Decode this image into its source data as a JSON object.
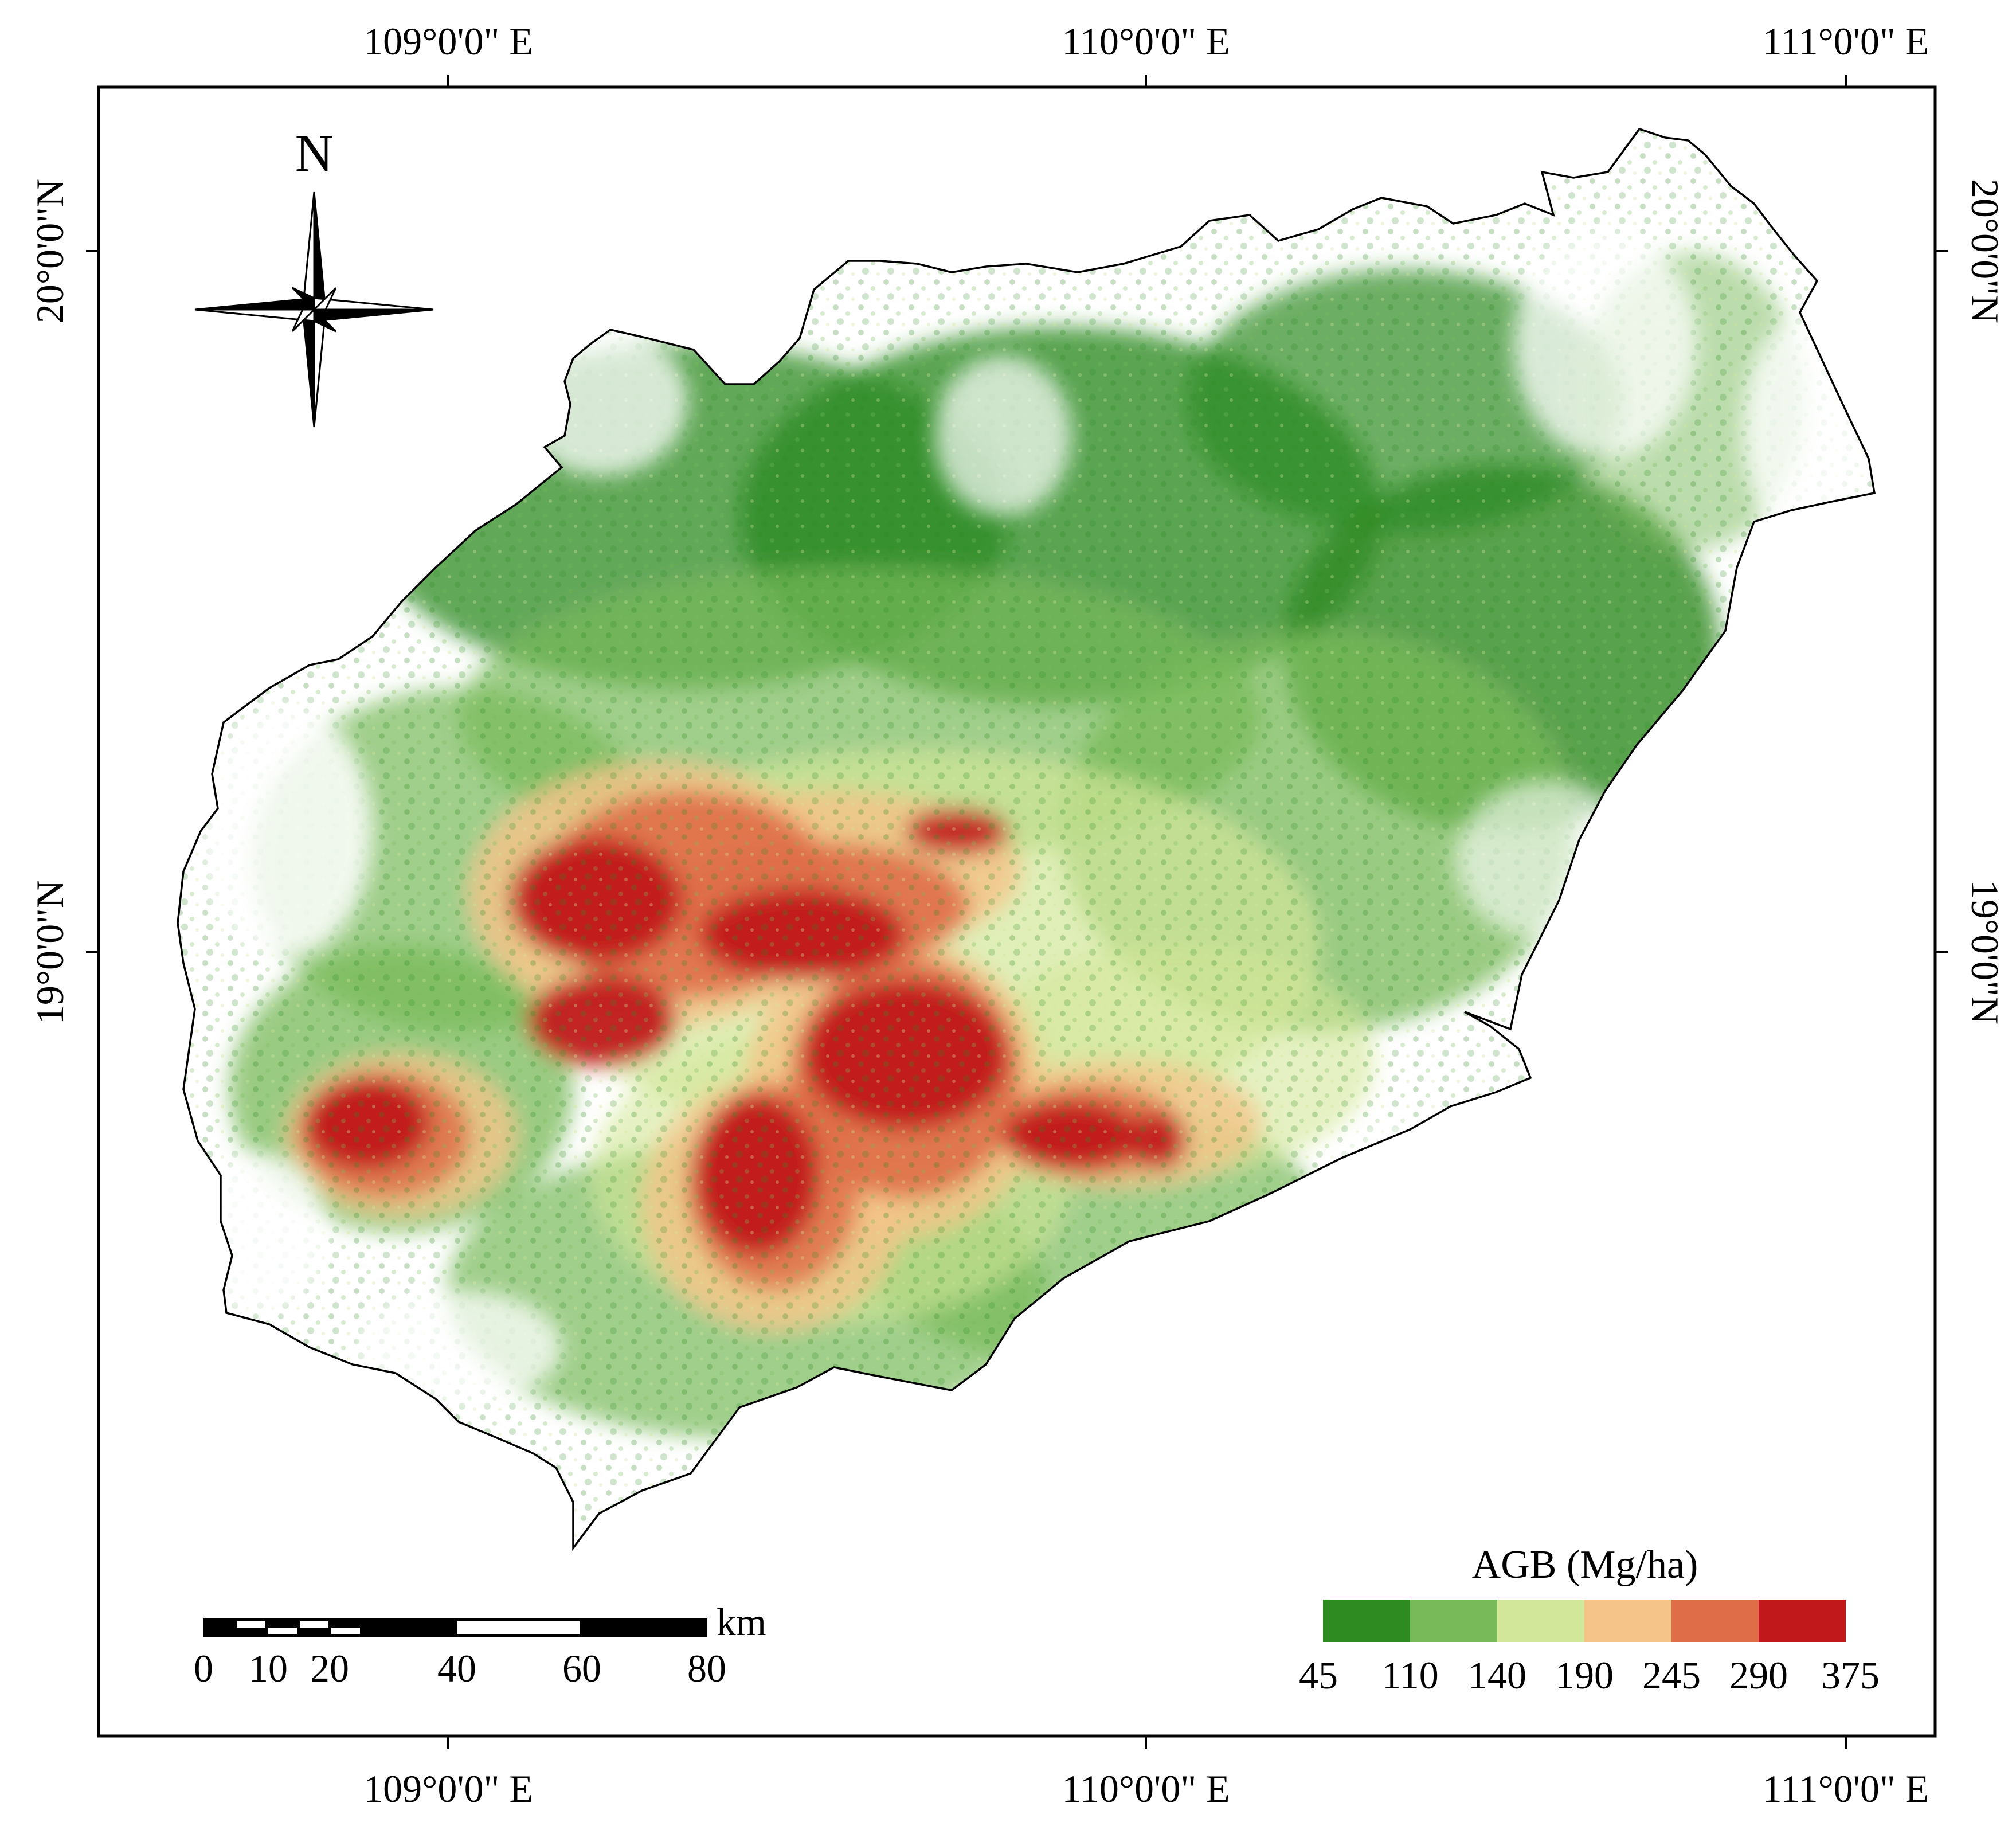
{
  "graticule": {
    "top_labels": [
      "109°0'0\" E",
      "110°0'0\" E",
      "111°0'0\" E"
    ],
    "bottom_labels": [
      "109°0'0\" E",
      "110°0'0\" E",
      "111°0'0\" E"
    ],
    "left_labels": [
      "20°0'0\"N",
      "19°0'0\"N"
    ],
    "right_labels": [
      "20°0'0\"N",
      "19°0'0\"N"
    ]
  },
  "north_arrow": {
    "label": "N"
  },
  "scale_bar": {
    "unit": "km",
    "ticks": [
      "0",
      "10",
      "20",
      "40",
      "60",
      "80"
    ]
  },
  "legend": {
    "title": "AGB (Mg/ha)",
    "class_breaks": [
      "45",
      "110",
      "140",
      "190",
      "245",
      "290",
      "375"
    ],
    "colors": [
      "#2e8b22",
      "#78b95a",
      "#d3e79a",
      "#f5c489",
      "#df6e48",
      "#c1191b"
    ]
  }
}
